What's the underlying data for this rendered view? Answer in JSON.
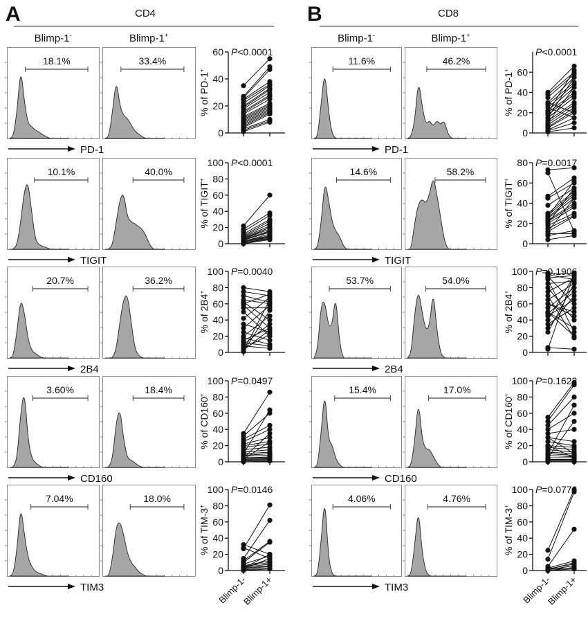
{
  "panels": [
    {
      "letter": "A",
      "title": "CD4",
      "columns": [
        {
          "base": "Blimp-1",
          "sup": "-"
        },
        {
          "base": "Blimp-1",
          "sup": "+"
        }
      ],
      "xticks": [
        "Blimp-1-",
        "Blimp-1+"
      ]
    },
    {
      "letter": "B",
      "title": "CD8",
      "columns": [
        {
          "base": "Blimp-1",
          "sup": "-"
        },
        {
          "base": "Blimp-1",
          "sup": "+"
        }
      ],
      "xticks": [
        "Blimp-1-",
        "Blimp-1+"
      ]
    }
  ],
  "chart_data": [
    {
      "panel": "A",
      "type": "scatter",
      "marker": "PD-1",
      "ylabel": "% of PD-1",
      "ylabel_sup": "+",
      "p": "<0.0001",
      "ylim": [
        0,
        60
      ],
      "yticks": [
        0,
        20,
        40,
        60
      ],
      "gates": [
        "18.1%",
        "33.4%"
      ],
      "hist": [
        [
          0,
          0.02,
          0.3,
          0.78,
          0.4,
          0.16,
          0.13,
          0.09,
          0.07,
          0.04,
          0.02,
          0,
          0,
          0,
          0,
          0,
          0
        ],
        [
          0,
          0.02,
          0.3,
          0.65,
          0.35,
          0.25,
          0.22,
          0.15,
          0.08,
          0.05,
          0.02,
          0,
          0,
          0,
          0,
          0,
          0
        ]
      ],
      "pairs": [
        [
          35,
          55
        ],
        [
          27,
          49
        ],
        [
          26,
          47
        ],
        [
          25,
          38
        ],
        [
          24,
          36
        ],
        [
          22,
          35
        ],
        [
          20,
          33
        ],
        [
          19,
          32
        ],
        [
          18,
          30
        ],
        [
          16,
          28
        ],
        [
          15,
          27
        ],
        [
          14,
          25
        ],
        [
          12,
          22
        ],
        [
          11,
          21
        ],
        [
          10,
          20
        ],
        [
          9,
          19
        ],
        [
          8,
          18
        ],
        [
          7,
          17
        ],
        [
          6,
          16
        ],
        [
          5,
          15
        ],
        [
          4,
          14
        ],
        [
          3,
          10
        ],
        [
          2,
          9
        ],
        [
          1,
          8
        ]
      ]
    },
    {
      "panel": "A",
      "type": "scatter",
      "marker": "TIGIT",
      "ylabel": "% of TIGIT",
      "ylabel_sup": "+",
      "p": "<0.0001",
      "ylim": [
        0,
        100
      ],
      "yticks": [
        0,
        20,
        40,
        60,
        80,
        100
      ],
      "gates": [
        "10.1%",
        "40.0%"
      ],
      "hist": [
        [
          0,
          0,
          0.05,
          0.3,
          0.65,
          0.74,
          0.4,
          0.1,
          0.05,
          0.03,
          0.02,
          0,
          0,
          0,
          0,
          0,
          0
        ],
        [
          0,
          0,
          0.05,
          0.3,
          0.55,
          0.62,
          0.35,
          0.3,
          0.28,
          0.25,
          0.22,
          0.15,
          0.05,
          0,
          0,
          0,
          0
        ]
      ],
      "pairs": [
        [
          22,
          60
        ],
        [
          18,
          38
        ],
        [
          15,
          35
        ],
        [
          12,
          30
        ],
        [
          10,
          28
        ],
        [
          9,
          25
        ],
        [
          8,
          22
        ],
        [
          7,
          20
        ],
        [
          6,
          18
        ],
        [
          5,
          16
        ],
        [
          4,
          15
        ],
        [
          3,
          12
        ],
        [
          3,
          10
        ],
        [
          2,
          9
        ],
        [
          2,
          8
        ],
        [
          1,
          7
        ],
        [
          1,
          6
        ],
        [
          0,
          5
        ],
        [
          5,
          14
        ],
        [
          6,
          20
        ]
      ]
    },
    {
      "panel": "A",
      "type": "scatter",
      "marker": "2B4",
      "ylabel": "% of 2B4",
      "ylabel_sup": "+",
      "p": "=0.0040",
      "ylim": [
        0,
        100
      ],
      "yticks": [
        0,
        20,
        40,
        60,
        80,
        100
      ],
      "gates": [
        "20.7%",
        "36.2%"
      ],
      "hist": [
        [
          0,
          0.02,
          0.3,
          0.65,
          0.5,
          0.2,
          0.08,
          0.05,
          0.02,
          0,
          0,
          0,
          0,
          0,
          0,
          0,
          0
        ],
        [
          0,
          0,
          0,
          0.1,
          0.4,
          0.65,
          0.7,
          0.4,
          0.1,
          0.03,
          0,
          0,
          0,
          0,
          0,
          0,
          0
        ]
      ],
      "pairs": [
        [
          80,
          75
        ],
        [
          75,
          70
        ],
        [
          70,
          62
        ],
        [
          65,
          60
        ],
        [
          62,
          40
        ],
        [
          60,
          72
        ],
        [
          58,
          30
        ],
        [
          55,
          55
        ],
        [
          50,
          20
        ],
        [
          42,
          68
        ],
        [
          35,
          25
        ],
        [
          30,
          58
        ],
        [
          25,
          15
        ],
        [
          20,
          45
        ],
        [
          18,
          10
        ],
        [
          15,
          30
        ],
        [
          12,
          8
        ],
        [
          10,
          35
        ],
        [
          8,
          5
        ],
        [
          5,
          22
        ],
        [
          3,
          28
        ],
        [
          2,
          65
        ],
        [
          1,
          52
        ]
      ]
    },
    {
      "panel": "A",
      "type": "scatter",
      "marker": "CD160",
      "ylabel": "% of CD160",
      "ylabel_sup": "+",
      "p": "=0.0497",
      "ylim": [
        0,
        100
      ],
      "yticks": [
        0,
        20,
        40,
        60,
        80,
        100
      ],
      "gates": [
        "3.60%",
        "18.4%"
      ],
      "hist": [
        [
          0,
          0,
          0.1,
          0.6,
          0.85,
          0.3,
          0.1,
          0.05,
          0.02,
          0,
          0,
          0,
          0,
          0,
          0,
          0,
          0
        ],
        [
          0,
          0,
          0.1,
          0.5,
          0.65,
          0.3,
          0.1,
          0.08,
          0.05,
          0.02,
          0,
          0,
          0,
          0,
          0,
          0,
          0
        ]
      ],
      "pairs": [
        [
          35,
          86
        ],
        [
          32,
          60
        ],
        [
          28,
          45
        ],
        [
          25,
          40
        ],
        [
          22,
          30
        ],
        [
          20,
          25
        ],
        [
          18,
          22
        ],
        [
          15,
          18
        ],
        [
          12,
          15
        ],
        [
          10,
          12
        ],
        [
          8,
          10
        ],
        [
          7,
          8
        ],
        [
          5,
          6
        ],
        [
          4,
          5
        ],
        [
          3,
          4
        ],
        [
          2,
          3
        ],
        [
          1,
          2
        ],
        [
          0,
          1
        ],
        [
          10,
          64
        ],
        [
          5,
          35
        ],
        [
          3,
          25
        ]
      ]
    },
    {
      "panel": "A",
      "type": "scatter",
      "marker": "TIM3",
      "ylabel": "% of TIM-3",
      "ylabel_sup": "+",
      "p": "=0.0146",
      "ylim": [
        0,
        100
      ],
      "yticks": [
        0,
        20,
        40,
        60,
        80,
        100
      ],
      "gates": [
        "7.04%",
        "18.0%"
      ],
      "hist": [
        [
          0,
          0.02,
          0.3,
          0.78,
          0.45,
          0.2,
          0.1,
          0.05,
          0.03,
          0.02,
          0,
          0,
          0,
          0,
          0,
          0,
          0
        ],
        [
          0,
          0,
          0.2,
          0.55,
          0.6,
          0.45,
          0.25,
          0.15,
          0.1,
          0.05,
          0.02,
          0,
          0,
          0,
          0,
          0,
          0
        ]
      ],
      "pairs": [
        [
          32,
          20
        ],
        [
          28,
          15
        ],
        [
          27,
          81
        ],
        [
          15,
          62
        ],
        [
          12,
          36
        ],
        [
          10,
          35
        ],
        [
          8,
          18
        ],
        [
          6,
          12
        ],
        [
          5,
          10
        ],
        [
          4,
          8
        ],
        [
          3,
          6
        ],
        [
          2,
          5
        ],
        [
          1,
          3
        ],
        [
          0,
          2
        ],
        [
          2,
          15
        ],
        [
          3,
          20
        ]
      ]
    },
    {
      "panel": "B",
      "type": "scatter",
      "marker": "PD-1",
      "ylabel": "% of PD-1",
      "ylabel_sup": "+",
      "p": "<0.0001",
      "ylim": [
        0,
        80
      ],
      "yticks": [
        0,
        20,
        40,
        60
      ],
      "gates": [
        "11.6%",
        "46.2%"
      ],
      "hist": [
        [
          0,
          0.02,
          0.4,
          0.75,
          0.3,
          0.05,
          0,
          0,
          0,
          0,
          0,
          0,
          0,
          0,
          0,
          0,
          0
        ],
        [
          0,
          0.02,
          0.2,
          0.65,
          0.35,
          0.15,
          0.2,
          0.13,
          0.2,
          0.15,
          0.2,
          0.05,
          0,
          0,
          0,
          0,
          0
        ]
      ],
      "pairs": [
        [
          40,
          66
        ],
        [
          38,
          60
        ],
        [
          35,
          58
        ],
        [
          30,
          55
        ],
        [
          28,
          50
        ],
        [
          25,
          48
        ],
        [
          22,
          45
        ],
        [
          20,
          40
        ],
        [
          18,
          38
        ],
        [
          15,
          35
        ],
        [
          12,
          30
        ],
        [
          10,
          28
        ],
        [
          8,
          25
        ],
        [
          6,
          22
        ],
        [
          5,
          20
        ],
        [
          3,
          15
        ],
        [
          2,
          10
        ],
        [
          1,
          5
        ],
        [
          20,
          62
        ],
        [
          15,
          55
        ],
        [
          10,
          45
        ],
        [
          30,
          20
        ],
        [
          25,
          15
        ]
      ]
    },
    {
      "panel": "B",
      "type": "scatter",
      "marker": "TIGIT",
      "ylabel": "% of TIGIT",
      "ylabel_sup": "+",
      "p": "=0.0017",
      "ylim": [
        0,
        80
      ],
      "yticks": [
        0,
        20,
        40,
        60,
        80
      ],
      "gates": [
        "14.6%",
        "58.2%"
      ],
      "hist": [
        [
          0,
          0.02,
          0.3,
          0.75,
          0.55,
          0.3,
          0.2,
          0.15,
          0.05,
          0,
          0,
          0,
          0,
          0,
          0,
          0,
          0
        ],
        [
          0,
          0,
          0.3,
          0.5,
          0.55,
          0.5,
          0.6,
          0.8,
          0.6,
          0.35,
          0.1,
          0,
          0,
          0,
          0,
          0,
          0
        ]
      ],
      "pairs": [
        [
          73,
          75
        ],
        [
          70,
          12
        ],
        [
          47,
          65
        ],
        [
          45,
          60
        ],
        [
          38,
          55
        ],
        [
          30,
          52
        ],
        [
          28,
          50
        ],
        [
          26,
          48
        ],
        [
          25,
          45
        ],
        [
          23,
          40
        ],
        [
          22,
          38
        ],
        [
          20,
          36
        ],
        [
          18,
          30
        ],
        [
          15,
          28
        ],
        [
          12,
          27
        ],
        [
          10,
          10
        ],
        [
          8,
          13
        ],
        [
          4,
          8
        ],
        [
          27,
          62
        ],
        [
          20,
          55
        ],
        [
          12,
          45
        ]
      ]
    },
    {
      "panel": "B",
      "type": "scatter",
      "marker": "2B4",
      "ylabel": "% of 2B4",
      "ylabel_sup": "+",
      "p": "=0.1906",
      "ylim": [
        0,
        100
      ],
      "yticks": [
        0,
        20,
        40,
        60,
        80,
        100
      ],
      "gates": [
        "53.7%",
        "54.0%"
      ],
      "hist": [
        [
          0,
          0.1,
          0.6,
          0.62,
          0.35,
          0.35,
          0.7,
          0.2,
          0,
          0,
          0,
          0,
          0,
          0,
          0,
          0,
          0
        ],
        [
          0,
          0.05,
          0.5,
          0.75,
          0.5,
          0.3,
          0.35,
          0.75,
          0.3,
          0.05,
          0,
          0,
          0,
          0,
          0,
          0,
          0
        ]
      ],
      "pairs": [
        [
          98,
          97
        ],
        [
          96,
          90
        ],
        [
          94,
          60
        ],
        [
          92,
          95
        ],
        [
          90,
          25
        ],
        [
          85,
          88
        ],
        [
          80,
          40
        ],
        [
          75,
          92
        ],
        [
          70,
          18
        ],
        [
          65,
          85
        ],
        [
          60,
          50
        ],
        [
          55,
          80
        ],
        [
          50,
          30
        ],
        [
          48,
          75
        ],
        [
          45,
          65
        ],
        [
          40,
          95
        ],
        [
          35,
          55
        ],
        [
          30,
          70
        ],
        [
          25,
          85
        ],
        [
          6,
          4
        ],
        [
          4,
          98
        ],
        [
          50,
          20
        ],
        [
          60,
          45
        ]
      ]
    },
    {
      "panel": "B",
      "type": "scatter",
      "marker": "CD160",
      "ylabel": "% of CD160",
      "ylabel_sup": "+",
      "p": "=0.1622",
      "ylim": [
        0,
        100
      ],
      "yticks": [
        0,
        20,
        40,
        60,
        80,
        100
      ],
      "gates": [
        "15.4%",
        "17.0%"
      ],
      "hist": [
        [
          0,
          0.02,
          0.4,
          0.85,
          0.3,
          0.25,
          0.1,
          0.03,
          0,
          0,
          0,
          0,
          0,
          0,
          0,
          0,
          0
        ],
        [
          0,
          0.02,
          0.3,
          0.75,
          0.3,
          0.2,
          0.2,
          0.12,
          0.05,
          0,
          0,
          0,
          0,
          0,
          0,
          0,
          0
        ]
      ],
      "pairs": [
        [
          55,
          98
        ],
        [
          50,
          95
        ],
        [
          45,
          80
        ],
        [
          40,
          60
        ],
        [
          35,
          40
        ],
        [
          30,
          25
        ],
        [
          25,
          20
        ],
        [
          20,
          18
        ],
        [
          18,
          15
        ],
        [
          15,
          12
        ],
        [
          12,
          10
        ],
        [
          10,
          8
        ],
        [
          8,
          6
        ],
        [
          5,
          5
        ],
        [
          3,
          3
        ],
        [
          2,
          2
        ],
        [
          1,
          1
        ],
        [
          0,
          0
        ],
        [
          10,
          70
        ],
        [
          5,
          50
        ],
        [
          20,
          5
        ],
        [
          30,
          10
        ]
      ]
    },
    {
      "panel": "B",
      "type": "scatter",
      "marker": "TIM3",
      "ylabel": "% of TIM-3",
      "ylabel_sup": "+",
      "p": "=0.0776",
      "ylim": [
        0,
        100
      ],
      "yticks": [
        0,
        20,
        40,
        60,
        80,
        100
      ],
      "gates": [
        "4.06%",
        "4.76%"
      ],
      "hist": [
        [
          0,
          0.02,
          0.4,
          0.88,
          0.2,
          0.02,
          0,
          0,
          0,
          0,
          0,
          0,
          0,
          0,
          0,
          0,
          0
        ],
        [
          0,
          0.02,
          0.35,
          0.75,
          0.25,
          0.05,
          0,
          0,
          0,
          0,
          0,
          0,
          0,
          0,
          0,
          0,
          0
        ]
      ],
      "pairs": [
        [
          25,
          100
        ],
        [
          14,
          97
        ],
        [
          5,
          51
        ],
        [
          3,
          12
        ],
        [
          2,
          8
        ],
        [
          1,
          6
        ],
        [
          0,
          4
        ],
        [
          0,
          2
        ],
        [
          1,
          10
        ],
        [
          2,
          3
        ]
      ]
    }
  ],
  "colors": {
    "histogram_fill": "#a6a6a6",
    "line": "#111111",
    "box": "#888888"
  }
}
